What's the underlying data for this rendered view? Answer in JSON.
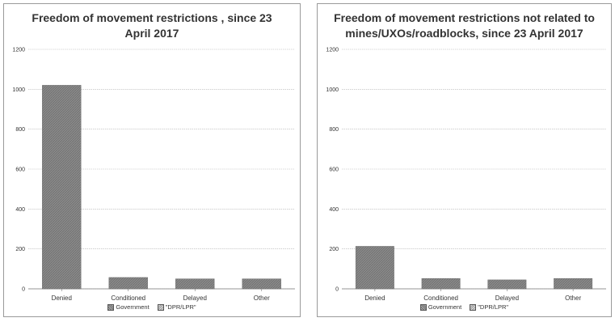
{
  "chart_data": [
    {
      "type": "bar",
      "title": "Freedom of movement restrictions , since 23 April 2017",
      "categories": [
        "Denied",
        "Conditioned",
        "Delayed",
        "Other"
      ],
      "series": [
        {
          "name": "Government",
          "values": [
            1020,
            57,
            50,
            50
          ]
        },
        {
          "name": "\"DPR/LPR\"",
          "values": [
            0,
            0,
            0,
            0
          ]
        }
      ],
      "ylim": [
        0,
        1200
      ],
      "yticks": [
        0,
        200,
        400,
        600,
        800,
        1000,
        1200
      ],
      "grid": true,
      "legend_position": "bottom",
      "bar_color": "#8a8a8a"
    },
    {
      "type": "bar",
      "title": "Freedom of movement restrictions not related to mines/UXOs/roadblocks, since 23 April 2017",
      "categories": [
        "Denied",
        "Conditioned",
        "Delayed",
        "Other"
      ],
      "series": [
        {
          "name": "Government",
          "values": [
            213,
            52,
            45,
            52
          ]
        },
        {
          "name": "\"DPR/LPR\"",
          "values": [
            0,
            0,
            0,
            0
          ]
        }
      ],
      "ylim": [
        0,
        1200
      ],
      "yticks": [
        0,
        200,
        400,
        600,
        800,
        1000,
        1200
      ],
      "grid": true,
      "legend_position": "bottom",
      "bar_color": "#8a8a8a"
    }
  ]
}
